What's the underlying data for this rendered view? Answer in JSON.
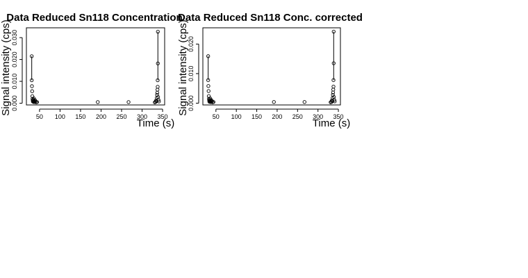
{
  "chart_data": [
    {
      "type": "scatter",
      "title": "Data Reduced Sn118 Concentration",
      "xlabel": "Time (s)",
      "ylabel": "Signal intensity (cps)",
      "xlim": [
        18,
        355
      ],
      "ylim": [
        -0.0008,
        0.0345
      ],
      "xticks": [
        50,
        100,
        150,
        200,
        250,
        300,
        350
      ],
      "yticks": [
        0.0,
        0.01,
        0.02,
        0.03
      ],
      "ytick_labels": [
        "0.000",
        "0.010",
        "0.020",
        "0.030"
      ],
      "points": [
        {
          "x": 31,
          "y": 0.0215
        },
        {
          "x": 31,
          "y": 0.0105
        },
        {
          "x": 31.5,
          "y": 0.0078
        },
        {
          "x": 32,
          "y": 0.0055
        },
        {
          "x": 32.5,
          "y": 0.0032
        },
        {
          "x": 33,
          "y": 0.002
        },
        {
          "x": 33.5,
          "y": 0.0012
        },
        {
          "x": 34,
          "y": 0.0007
        },
        {
          "x": 34.5,
          "y": 0.0016
        },
        {
          "x": 35,
          "y": 0.0009
        },
        {
          "x": 36,
          "y": 0.0022
        },
        {
          "x": 36.5,
          "y": 0.0005
        },
        {
          "x": 37,
          "y": 0.0011
        },
        {
          "x": 38,
          "y": 0.0006
        },
        {
          "x": 39,
          "y": 0.0014
        },
        {
          "x": 40,
          "y": 0.0008
        },
        {
          "x": 42,
          "y": 0.0004
        },
        {
          "x": 44,
          "y": 0.0005
        },
        {
          "x": 192,
          "y": 0.0005
        },
        {
          "x": 267,
          "y": 0.0005
        },
        {
          "x": 331,
          "y": 0.0004
        },
        {
          "x": 333,
          "y": 0.0006
        },
        {
          "x": 334,
          "y": 0.0012
        },
        {
          "x": 335,
          "y": 0.0009
        },
        {
          "x": 336,
          "y": 0.0025
        },
        {
          "x": 336.5,
          "y": 0.0038
        },
        {
          "x": 337,
          "y": 0.0048
        },
        {
          "x": 337.5,
          "y": 0.0062
        },
        {
          "x": 338,
          "y": 0.0075
        },
        {
          "x": 338,
          "y": 0.0105
        },
        {
          "x": 338.5,
          "y": 0.0182
        },
        {
          "x": 338.5,
          "y": 0.0327
        },
        {
          "x": 339,
          "y": 0.0028
        },
        {
          "x": 340,
          "y": 0.0015
        },
        {
          "x": 341,
          "y": 0.0008
        }
      ],
      "line_segments": [
        {
          "x1": 31,
          "y1": 0.0215,
          "x2": 31,
          "y2": 0.0105
        },
        {
          "x1": 338.5,
          "y1": 0.0327,
          "x2": 338.5,
          "y2": 0.0105
        }
      ]
    },
    {
      "type": "scatter",
      "title": "Data Reduced Sn118 Conc. corrected",
      "xlabel": "Time (s)",
      "ylabel": "Signal intensity (cps)",
      "xlim": [
        18,
        355
      ],
      "ylim": [
        -0.0006,
        0.0255
      ],
      "xticks": [
        50,
        100,
        150,
        200,
        250,
        300,
        350
      ],
      "yticks": [
        0.0,
        0.01,
        0.02
      ],
      "ytick_labels": [
        "0.000",
        "0.010",
        "0.020"
      ],
      "points": [
        {
          "x": 31,
          "y": 0.0159
        },
        {
          "x": 31,
          "y": 0.0078
        },
        {
          "x": 31.5,
          "y": 0.0058
        },
        {
          "x": 32,
          "y": 0.0041
        },
        {
          "x": 32.5,
          "y": 0.0024
        },
        {
          "x": 33,
          "y": 0.0015
        },
        {
          "x": 33.5,
          "y": 0.0009
        },
        {
          "x": 34,
          "y": 0.0005
        },
        {
          "x": 34.5,
          "y": 0.0012
        },
        {
          "x": 35,
          "y": 0.0007
        },
        {
          "x": 36,
          "y": 0.0016
        },
        {
          "x": 36.5,
          "y": 0.0004
        },
        {
          "x": 37,
          "y": 0.0008
        },
        {
          "x": 38,
          "y": 0.0004
        },
        {
          "x": 39,
          "y": 0.001
        },
        {
          "x": 40,
          "y": 0.0006
        },
        {
          "x": 42,
          "y": 0.0003
        },
        {
          "x": 44,
          "y": 0.0004
        },
        {
          "x": 192,
          "y": 0.0004
        },
        {
          "x": 267,
          "y": 0.0004
        },
        {
          "x": 331,
          "y": 0.0003
        },
        {
          "x": 333,
          "y": 0.0004
        },
        {
          "x": 334,
          "y": 0.0009
        },
        {
          "x": 335,
          "y": 0.0007
        },
        {
          "x": 336,
          "y": 0.0018
        },
        {
          "x": 336.5,
          "y": 0.0028
        },
        {
          "x": 337,
          "y": 0.0036
        },
        {
          "x": 337.5,
          "y": 0.0046
        },
        {
          "x": 338,
          "y": 0.0056
        },
        {
          "x": 338,
          "y": 0.0078
        },
        {
          "x": 338.5,
          "y": 0.0135
        },
        {
          "x": 338.5,
          "y": 0.0242
        },
        {
          "x": 339,
          "y": 0.0021
        },
        {
          "x": 340,
          "y": 0.0011
        },
        {
          "x": 341,
          "y": 0.0006
        }
      ],
      "line_segments": [
        {
          "x1": 31,
          "y1": 0.0159,
          "x2": 31,
          "y2": 0.0078
        },
        {
          "x1": 338.5,
          "y1": 0.0242,
          "x2": 338.5,
          "y2": 0.0078
        }
      ]
    }
  ]
}
